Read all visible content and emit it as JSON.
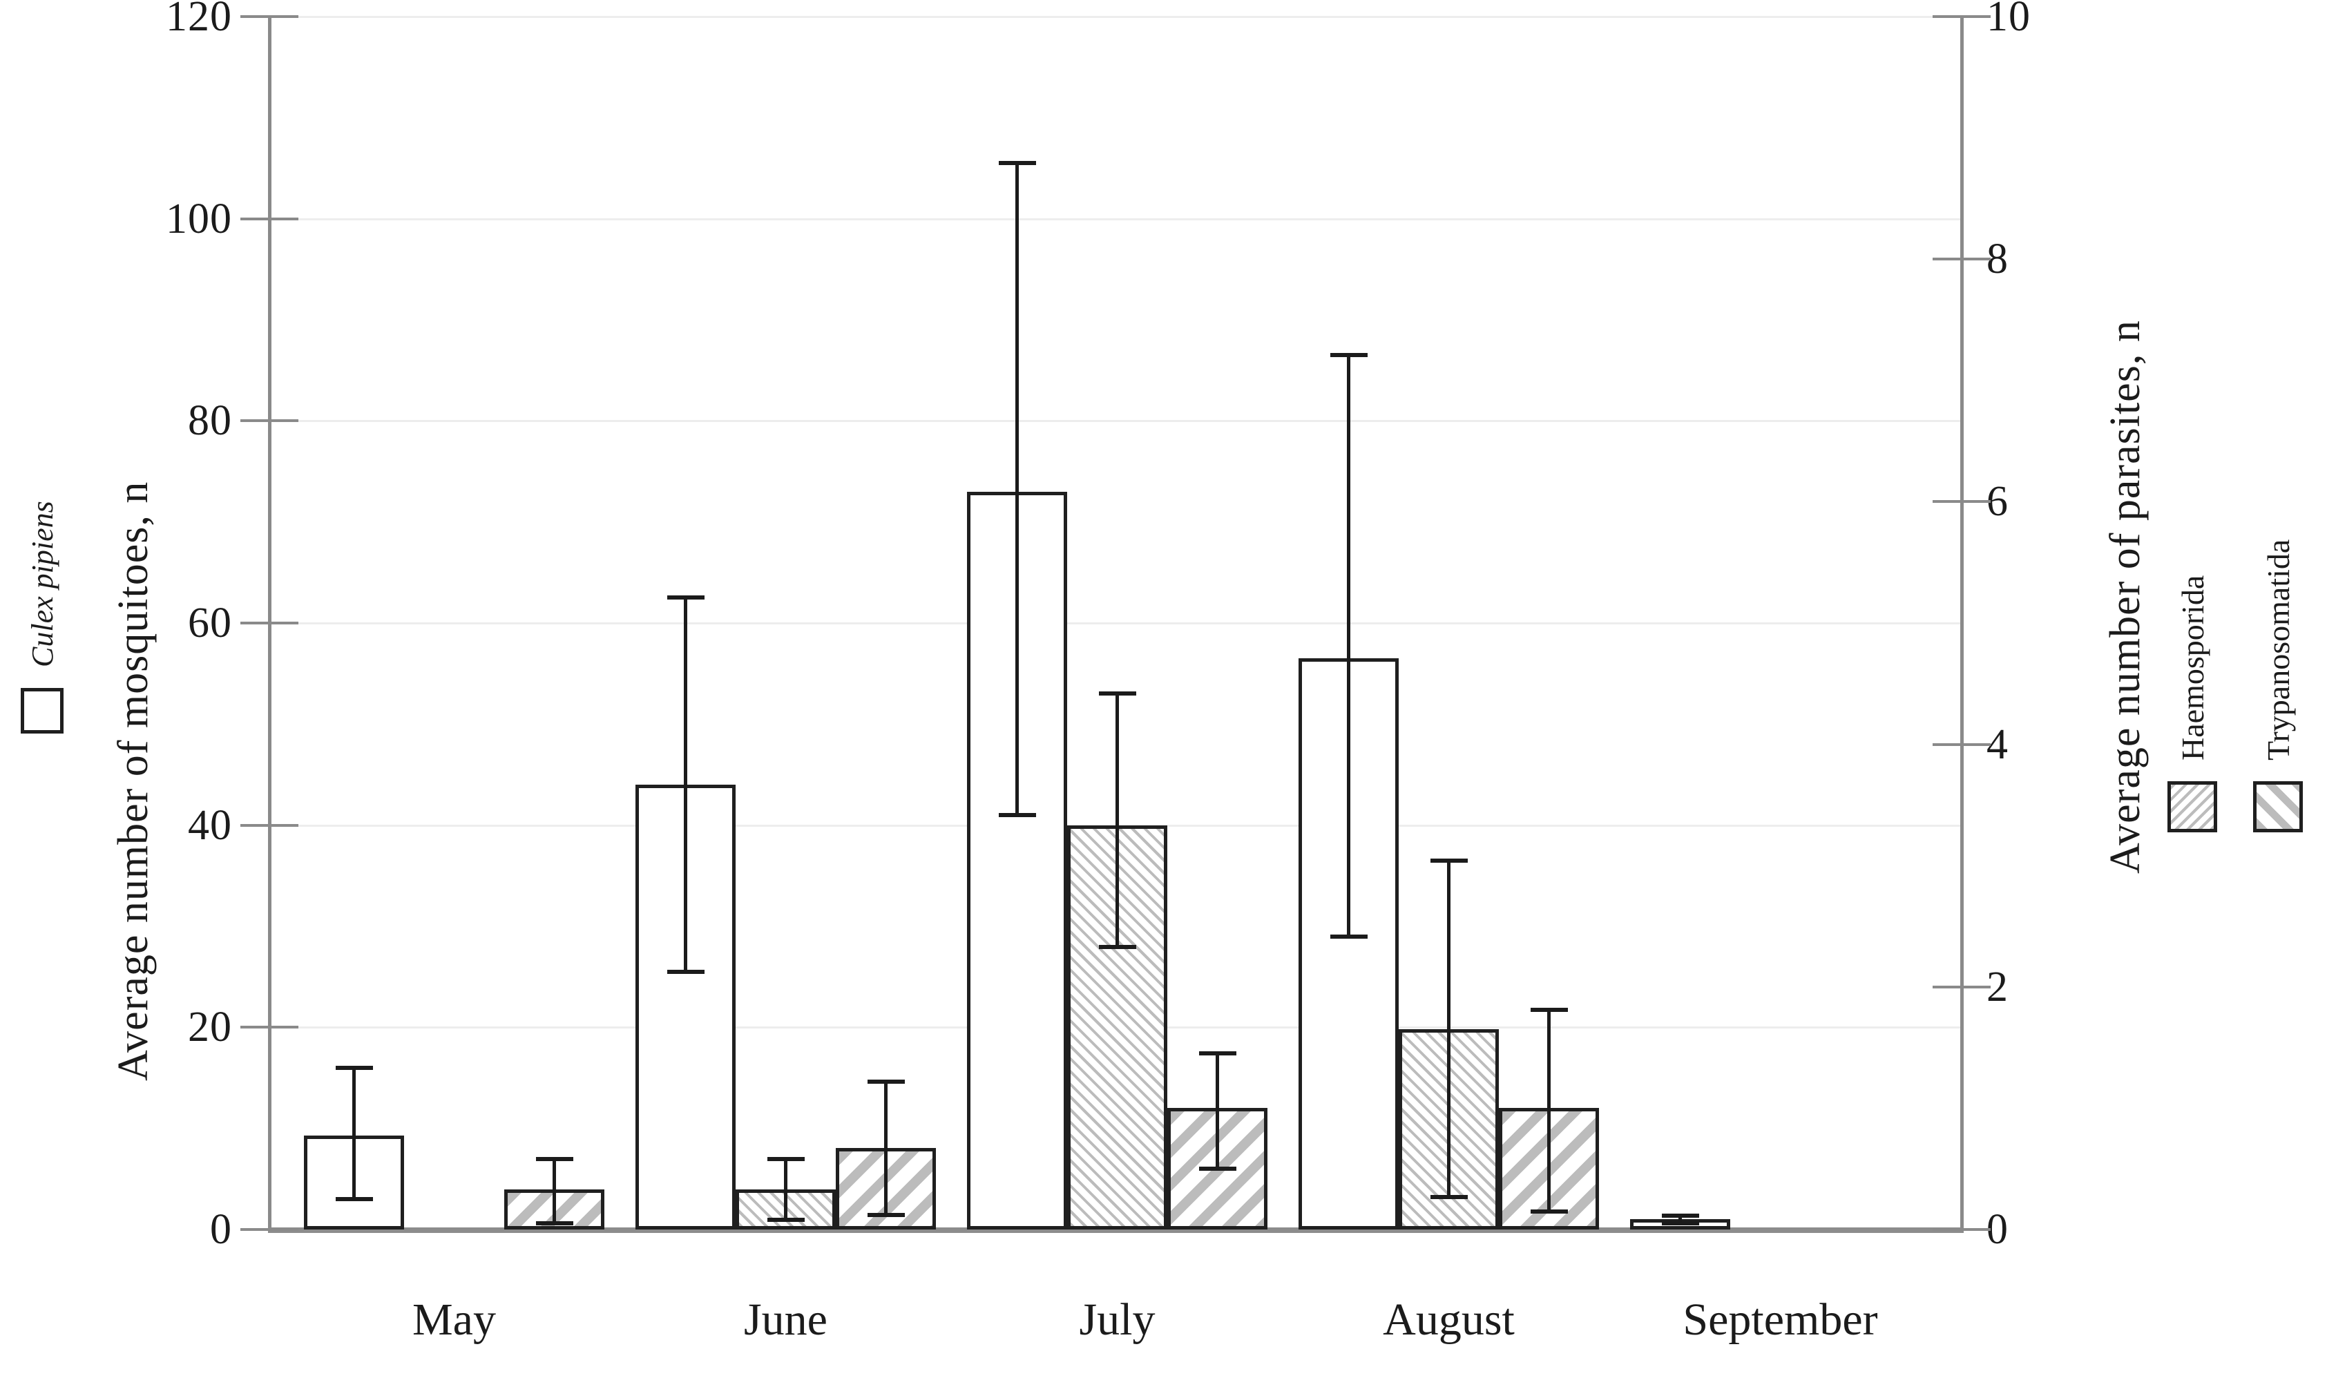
{
  "legend": {
    "culex": "Culex pipiens",
    "haemosporida": "Haemosporida",
    "trypanosomatida": "Trypanosomatida"
  },
  "colors": {
    "background": "#ffffff",
    "bar_border": "#1f1f1f",
    "hatch_gray": "#bcbcbc",
    "baseline_gray": "#8c8c8c",
    "gridline_gray": "#ededed",
    "text": "#1b1b1b"
  },
  "chart_data": {
    "type": "bar",
    "title": "",
    "categories": [
      "May",
      "June",
      "July",
      "August",
      "September"
    ],
    "left_axis": {
      "label": "Average number of mosquitoes, n",
      "min": 0,
      "max": 120,
      "ticks": [
        0,
        20,
        40,
        60,
        80,
        100,
        120
      ]
    },
    "right_axis": {
      "label": "Average number of parasites, n",
      "min": 0,
      "max": 10,
      "ticks": [
        0,
        2,
        4,
        6,
        8,
        10
      ]
    },
    "grid": true,
    "legend_position": "outside-rotated-left-and-right",
    "series": [
      {
        "name": "Culex pipiens",
        "axis": "left",
        "style": "open",
        "values": [
          9.3,
          44.0,
          73.0,
          56.5,
          1.0
        ],
        "err_low": [
          3.0,
          25.5,
          41.0,
          29.0,
          0.6
        ],
        "err_high": [
          16.0,
          62.5,
          105.5,
          86.5,
          1.4
        ]
      },
      {
        "name": "Haemosporida",
        "axis": "right",
        "style": "hatch-thin",
        "values": [
          null,
          0.33,
          3.33,
          1.65,
          null
        ],
        "err_low": [
          null,
          0.08,
          2.33,
          0.27,
          null
        ],
        "err_high": [
          null,
          0.58,
          4.42,
          3.04,
          null
        ]
      },
      {
        "name": "Trypanosomatida",
        "axis": "right",
        "style": "hatch-thick",
        "values": [
          0.33,
          0.67,
          1.0,
          1.0,
          null
        ],
        "err_low": [
          0.05,
          0.12,
          0.5,
          0.15,
          null
        ],
        "err_high": [
          0.58,
          1.22,
          1.45,
          1.81,
          null
        ]
      }
    ]
  }
}
